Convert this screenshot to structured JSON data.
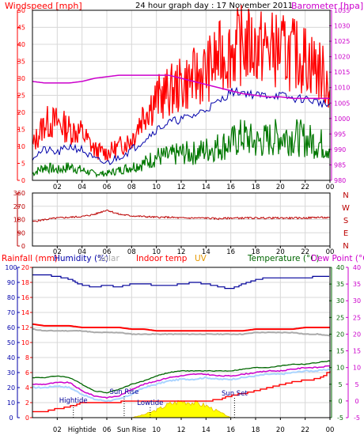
{
  "header": {
    "windspeed_label": "Windspeed [mph]",
    "title": "24 hour graph day : 17 November 2011",
    "barometer_label": "Barometer [hpa]"
  },
  "panel2_labels": {
    "rainfall": "Rainfall (mm)",
    "humidity": "Humidity (%)",
    "solar": "Solar",
    "indoor_temp": "Indoor temp",
    "uv": "UV",
    "temperature": "Temperature (°C)",
    "dew_point": "Dew Point (°C)"
  },
  "colors": {
    "wind_speed": "#ff0000",
    "wind_gust": "#0000aa",
    "wind_avg": "#007700",
    "barometer": "#cc00cc",
    "direction": "#bb0000",
    "humidity": "#000099",
    "indoor_temp": "#ff0000",
    "temperature": "#006600",
    "dew_point": "#cc00cc",
    "rainfall": "#ff0000",
    "solar": "#ffff00",
    "uv": "#e69900"
  },
  "chart_data": [
    {
      "type": "line",
      "name": "wind-barometer",
      "x_ticks": [
        "02",
        "04",
        "06",
        "08",
        "10",
        "12",
        "14",
        "16",
        "18",
        "20",
        "22",
        "00"
      ],
      "y_left": {
        "label": "Windspeed [mph]",
        "lim": [
          0,
          50
        ],
        "ticks": [
          "0",
          "5",
          "10",
          "15",
          "20",
          "25",
          "30",
          "35",
          "40",
          "45",
          "50"
        ]
      },
      "y_right": {
        "label": "Barometer [hpa]",
        "lim": [
          980,
          1035
        ],
        "ticks": [
          "980",
          "985",
          "990",
          "995",
          "1000",
          "1005",
          "1010",
          "1015",
          "1020",
          "1025",
          "1030",
          "1035"
        ]
      },
      "x_hours": [
        0,
        1,
        2,
        3,
        4,
        5,
        6,
        7,
        8,
        9,
        10,
        11,
        12,
        13,
        14,
        15,
        16,
        17,
        18,
        19,
        20,
        21,
        22,
        23,
        24
      ],
      "series": [
        {
          "key": "gust",
          "values": [
            10,
            17,
            17,
            15,
            14,
            9,
            8,
            10,
            12,
            20,
            24,
            26,
            28,
            30,
            32,
            36,
            38,
            40,
            39,
            39,
            38,
            37,
            36,
            33,
            28
          ]
        },
        {
          "key": "avg",
          "values": [
            7,
            9,
            8,
            10,
            9,
            6,
            5,
            7,
            9,
            12,
            15,
            17,
            18,
            19,
            21,
            23,
            26,
            26,
            25,
            25,
            25,
            24,
            24,
            23,
            22
          ]
        },
        {
          "key": "min",
          "values": [
            2,
            4,
            3,
            4,
            3,
            2,
            2,
            3,
            4,
            5,
            7,
            7,
            8,
            8,
            9,
            10,
            11,
            13,
            11,
            12,
            13,
            13,
            12,
            11,
            10
          ]
        },
        {
          "key": "barometer",
          "axis": "right",
          "values": [
            1012,
            1011.5,
            1011.5,
            1011.5,
            1012,
            1013,
            1013.5,
            1014,
            1014,
            1014,
            1014,
            1014,
            1013,
            1012,
            1011,
            1010,
            1009,
            1008,
            1007.5,
            1007,
            1007,
            1006.5,
            1006.5,
            1006.5,
            1006.5
          ]
        }
      ]
    },
    {
      "type": "line",
      "name": "wind-direction",
      "x_ticks": [
        "02",
        "04",
        "06",
        "08",
        "10",
        "12",
        "14",
        "16",
        "18",
        "20",
        "22",
        "00"
      ],
      "y_left": {
        "lim": [
          0,
          360
        ],
        "ticks": [
          "0",
          "90",
          "180",
          "270",
          "360"
        ]
      },
      "y_right": {
        "ticks": [
          "N",
          "W",
          "S",
          "E",
          "N"
        ]
      },
      "x_hours": [
        0,
        1,
        2,
        3,
        4,
        5,
        6,
        7,
        8,
        9,
        10,
        11,
        12,
        13,
        14,
        15,
        16,
        17,
        18,
        19,
        20,
        21,
        22,
        23,
        24
      ],
      "series": [
        {
          "key": "direction",
          "values": [
            165,
            180,
            190,
            195,
            200,
            215,
            245,
            215,
            205,
            200,
            195,
            195,
            190,
            190,
            190,
            185,
            190,
            190,
            190,
            190,
            190,
            190,
            190,
            195,
            190
          ]
        }
      ]
    },
    {
      "type": "line",
      "name": "climate",
      "x_ticks": [
        "02",
        "Hightide",
        "06",
        "Sun Rise",
        "10",
        "12",
        "14",
        "16",
        "18",
        "20",
        "22",
        "00"
      ],
      "y_left": {
        "lim": [
          0,
          100
        ],
        "ticks": [
          "0",
          "10",
          "20",
          "30",
          "40",
          "50",
          "60",
          "70",
          "80",
          "90",
          "100"
        ]
      },
      "y_left2": {
        "lim": [
          0,
          20
        ],
        "ticks": [
          "0",
          "2",
          "4",
          "6",
          "8",
          "10",
          "12",
          "14",
          "16",
          "18",
          "20"
        ]
      },
      "y_right": {
        "lim": [
          -5,
          40
        ],
        "ticks": [
          "-5",
          "0",
          "5",
          "10",
          "15",
          "20",
          "25",
          "30",
          "35",
          "40"
        ]
      },
      "y_right2": {
        "lim": [
          -5,
          40
        ],
        "ticks": [
          "-5",
          "0",
          "5",
          "10",
          "15",
          "20",
          "25",
          "30",
          "35",
          "40"
        ]
      },
      "events": [
        {
          "label": "Hightide",
          "hour": 3.3
        },
        {
          "label": "Sun Rise",
          "hour": 7.4
        },
        {
          "label": "Lowtide",
          "hour": 9.5
        },
        {
          "label": "Sun Set",
          "hour": 16.3
        }
      ],
      "x_hours": [
        0,
        1,
        2,
        3,
        4,
        5,
        6,
        7,
        8,
        9,
        10,
        11,
        12,
        13,
        14,
        15,
        16,
        17,
        18,
        19,
        20,
        21,
        22,
        23,
        24
      ],
      "series": [
        {
          "key": "humidity",
          "axis": "left",
          "values": [
            95,
            95,
            94,
            92,
            88,
            87,
            88,
            87,
            89,
            89,
            88,
            88,
            89,
            90,
            89,
            87,
            86,
            89,
            92,
            93,
            93,
            93,
            93,
            94,
            94
          ]
        },
        {
          "key": "indoor_temp",
          "axis": "right",
          "values": [
            23,
            22.5,
            22.5,
            22.5,
            22,
            22,
            22,
            22,
            21.5,
            21.5,
            21,
            21,
            21,
            21,
            21,
            21,
            21,
            21,
            21.5,
            21.5,
            21.5,
            21.5,
            22,
            22,
            22
          ]
        },
        {
          "key": "indoor_temp2",
          "axis": "right",
          "values": [
            21.5,
            21,
            21,
            21,
            21,
            20.5,
            20.5,
            20.5,
            20,
            20,
            20,
            20,
            20,
            20,
            20,
            20,
            20,
            20,
            20.5,
            20.5,
            20.5,
            20.5,
            20,
            20,
            19.5
          ]
        },
        {
          "key": "temperature",
          "axis": "right",
          "values": [
            7,
            7,
            7.5,
            7,
            5,
            3,
            2.5,
            3.5,
            5,
            6,
            7.5,
            8.5,
            9,
            9,
            9,
            9,
            9,
            9.5,
            10,
            10,
            10.5,
            11,
            11,
            11.5,
            12
          ]
        },
        {
          "key": "dew_point",
          "axis": "right",
          "values": [
            5,
            5,
            5.5,
            5.5,
            3,
            1.5,
            1,
            1.5,
            3.5,
            5,
            6,
            7,
            7.5,
            8,
            8,
            7.5,
            7.5,
            8,
            8.5,
            9,
            9,
            9.5,
            10,
            10,
            10.5
          ]
        },
        {
          "key": "dew_point_light",
          "axis": "right",
          "values": [
            4,
            4,
            4.5,
            4,
            2,
            0.5,
            0,
            0.5,
            2,
            4,
            5,
            6,
            6.5,
            6.5,
            7,
            6.5,
            6.5,
            7,
            7.5,
            8,
            8,
            8.5,
            9,
            9,
            9.5
          ]
        },
        {
          "key": "rainfall",
          "axis": "left2",
          "values": [
            0.8,
            0.8,
            1.2,
            1.5,
            2.0,
            2.0,
            2.0,
            2.1,
            2.1,
            2.1,
            2.1,
            2.1,
            2.2,
            2.2,
            2.2,
            2.4,
            3.0,
            3.2,
            3.6,
            4.0,
            4.4,
            4.8,
            5.0,
            5.2,
            6.2
          ]
        },
        {
          "key": "solar",
          "axis": "left",
          "values": [
            0,
            0,
            0,
            0,
            0,
            0,
            0,
            0,
            0,
            2,
            5,
            9,
            11,
            10,
            8,
            4,
            0,
            0,
            0,
            0,
            0,
            0,
            0,
            0,
            0
          ]
        }
      ]
    }
  ]
}
